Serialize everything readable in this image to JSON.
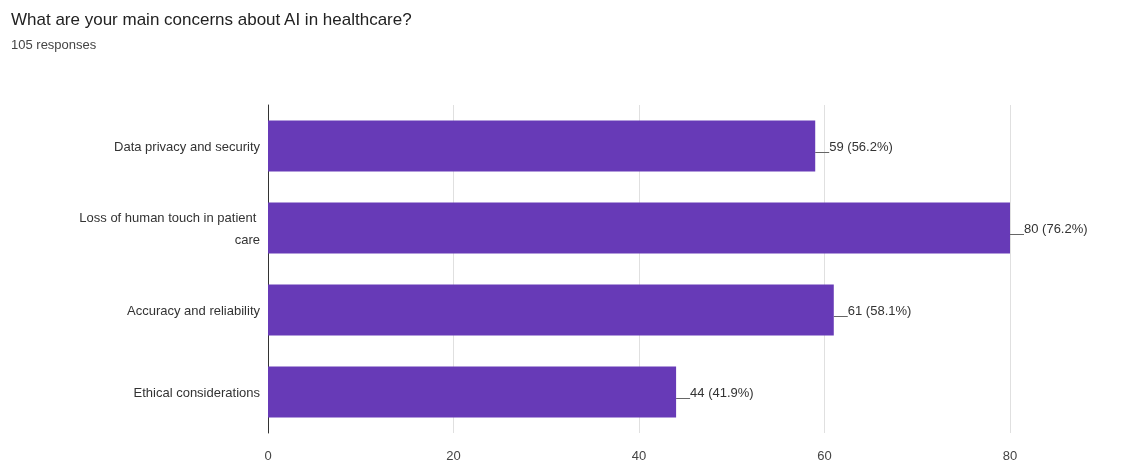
{
  "chart_data": {
    "type": "bar",
    "orientation": "horizontal",
    "title": "What are your main concerns about AI in healthcare?",
    "subtitle": "105 responses",
    "categories": [
      "Data privacy and security",
      "Loss of human touch in patient care",
      "Accuracy and reliability",
      "Ethical considerations"
    ],
    "values": [
      59,
      80,
      61,
      44
    ],
    "value_labels": [
      "59 (56.2%)",
      "80 (76.2%)",
      "61 (58.1%)",
      "44 (41.9%)"
    ],
    "color": "#673ab7",
    "xlim": [
      0,
      80
    ],
    "xticks": [
      0,
      20,
      40,
      60,
      80
    ],
    "grid": "x"
  }
}
